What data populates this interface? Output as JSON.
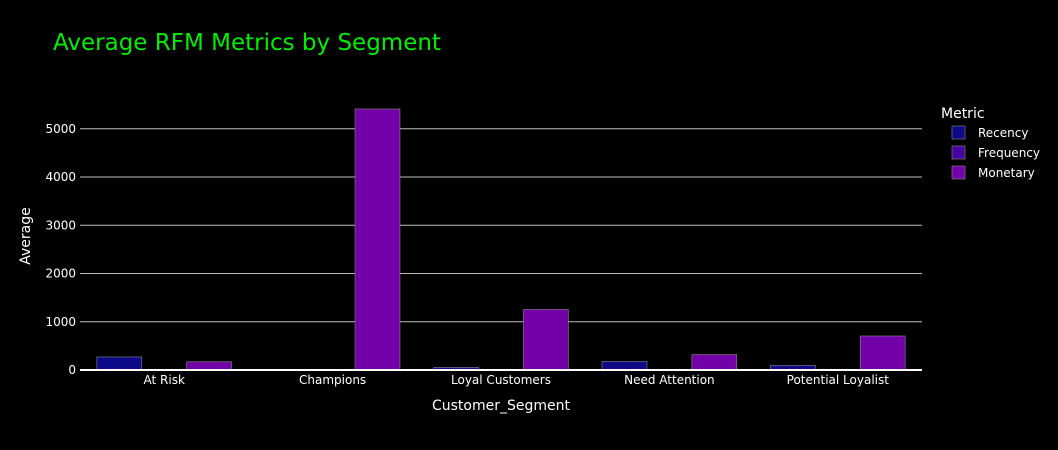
{
  "chart_data": {
    "type": "bar",
    "title": "Average RFM Metrics by Segment",
    "xlabel": "Customer_Segment",
    "ylabel": "Average",
    "ylim": [
      0,
      5700
    ],
    "yticks": [
      0,
      1000,
      2000,
      3000,
      4000,
      5000
    ],
    "grid": true,
    "legend_title": "Metric",
    "legend_position": "right",
    "categories": [
      "At Risk",
      "Champions",
      "Loyal Customers",
      "Need Attention",
      "Potential Loyalist"
    ],
    "series": [
      {
        "name": "Recency",
        "color": "#0d0887",
        "values": [
          270,
          12,
          55,
          175,
          95
        ]
      },
      {
        "name": "Frequency",
        "color": "#46039f",
        "values": [
          4,
          10,
          7,
          5,
          5
        ]
      },
      {
        "name": "Monetary",
        "color": "#7201a8",
        "values": [
          170,
          5410,
          1255,
          320,
          705
        ]
      }
    ]
  }
}
